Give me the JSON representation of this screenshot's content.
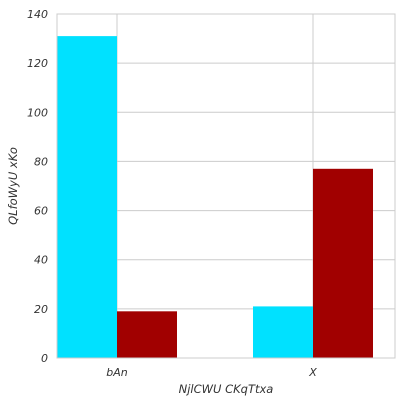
{
  "chart_data": {
    "type": "bar",
    "title": "",
    "xlabel": "NjlCWU CKqTtxa",
    "ylabel": "QLfoWyU xKo",
    "categories": [
      "bAn",
      "X"
    ],
    "series": [
      {
        "color": "#00e1ff",
        "values": [
          131,
          21
        ]
      },
      {
        "color": "#a10000",
        "values": [
          19,
          77
        ]
      }
    ],
    "ylim": [
      0,
      140
    ],
    "yticks": [
      0,
      20,
      40,
      60,
      80,
      100,
      120,
      140
    ],
    "grid": true,
    "legend": "none"
  }
}
